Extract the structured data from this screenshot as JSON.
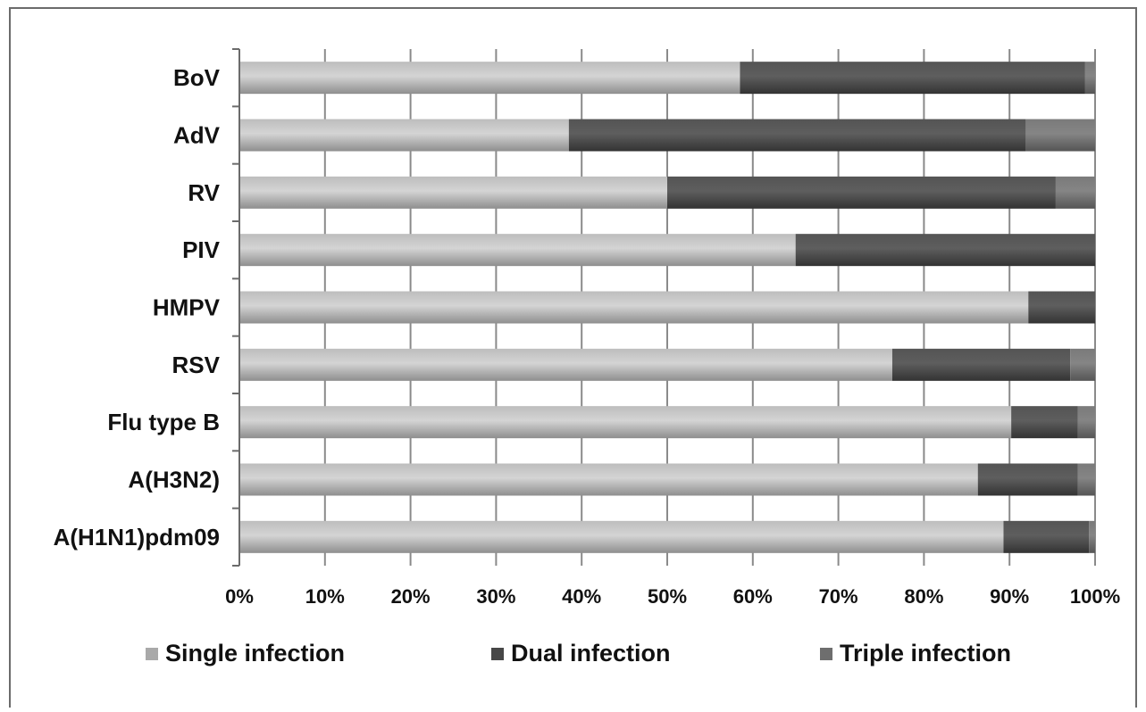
{
  "chart_data": {
    "type": "bar",
    "orientation": "horizontal",
    "stacked": "percent",
    "categories": [
      "BoV",
      "AdV",
      "RV",
      "PIV",
      "HMPV",
      "RSV",
      "Flu type B",
      "A(H3N2)",
      "A(H1N1)pdm09"
    ],
    "series": [
      {
        "name": "Single infection",
        "values": [
          58.5,
          38.5,
          50.0,
          65.0,
          92.2,
          76.3,
          90.2,
          86.3,
          89.3
        ]
      },
      {
        "name": "Dual infection",
        "values": [
          40.3,
          53.4,
          45.4,
          35.0,
          7.8,
          20.8,
          7.8,
          11.7,
          10.0
        ]
      },
      {
        "name": "Triple infection",
        "values": [
          1.2,
          8.1,
          4.6,
          0.0,
          0.0,
          2.9,
          2.0,
          2.0,
          0.7
        ]
      }
    ],
    "xlim": [
      0,
      100
    ],
    "x_ticks": [
      "0%",
      "10%",
      "20%",
      "30%",
      "40%",
      "50%",
      "60%",
      "70%",
      "80%",
      "90%",
      "100%"
    ],
    "grid": "vertical",
    "legend": "bottom",
    "colors": {
      "Single infection": "#a9a9a9",
      "Dual infection": "#474747",
      "Triple infection": "#6e6e6e"
    }
  }
}
